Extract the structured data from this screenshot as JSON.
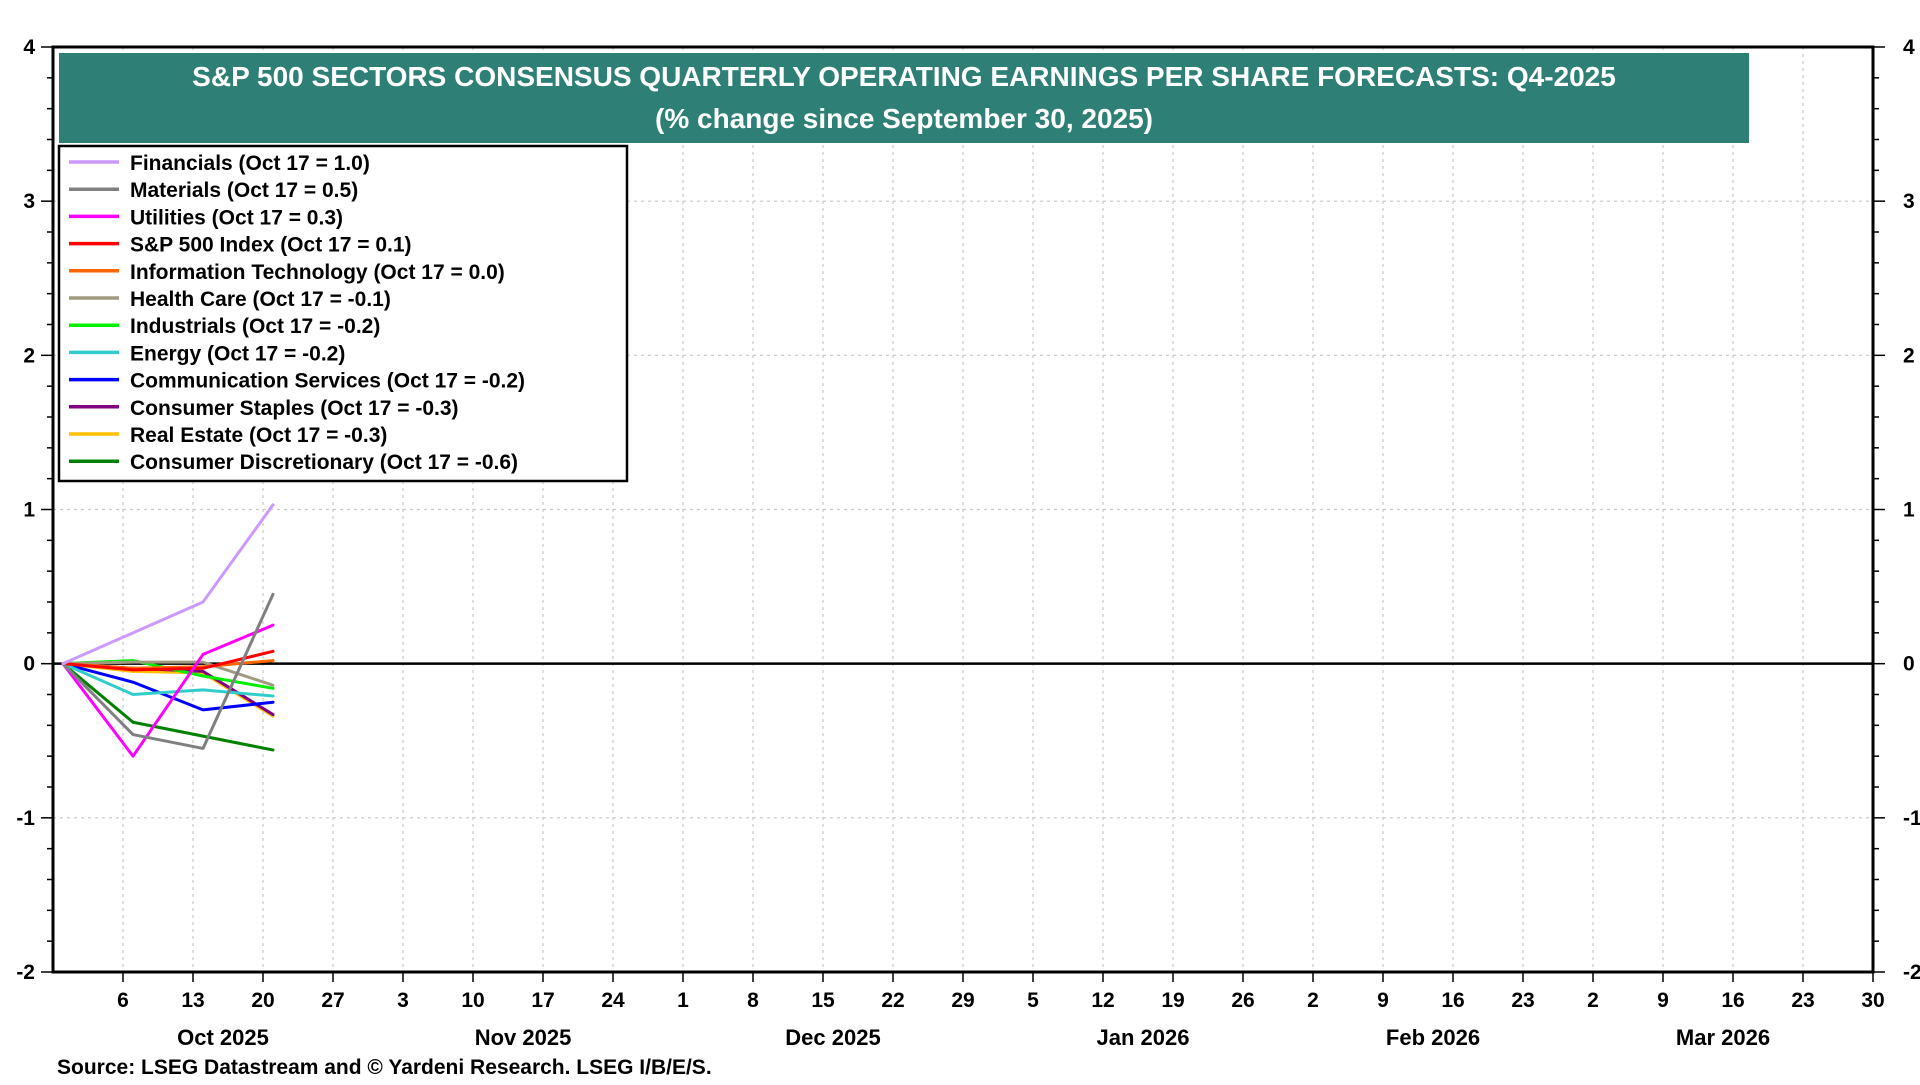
{
  "chart_data": {
    "type": "line",
    "title": "S&P 500 SECTORS CONSENSUS QUARTERLY OPERATING EARNINGS PER SHARE FORECASTS: Q4-2025",
    "subtitle": "(% change since September 30, 2025)",
    "source": "Source: LSEG Datastream and © Yardeni Research. LSEG I/B/E/S.",
    "xlabel": "",
    "ylabel": "",
    "ylim": [
      -2,
      4
    ],
    "yticks": [
      -2,
      -1,
      0,
      1,
      2,
      3,
      4
    ],
    "ytick_labels": [
      "-2",
      "-1",
      "0",
      "1",
      "2",
      "3",
      "4"
    ],
    "xlim_days": [
      -1,
      181
    ],
    "x_days": [
      0,
      7,
      14,
      21
    ],
    "x_dates": [
      "Sep 30",
      "Oct 7",
      "Oct 14",
      "Oct 21"
    ],
    "xticks": [
      {
        "label": "6",
        "day": 6
      },
      {
        "label": "13",
        "day": 13
      },
      {
        "label": "20",
        "day": 20
      },
      {
        "label": "27",
        "day": 27
      },
      {
        "label": "3",
        "day": 34
      },
      {
        "label": "10",
        "day": 41
      },
      {
        "label": "17",
        "day": 48
      },
      {
        "label": "24",
        "day": 55
      },
      {
        "label": "1",
        "day": 62
      },
      {
        "label": "8",
        "day": 69
      },
      {
        "label": "15",
        "day": 76
      },
      {
        "label": "22",
        "day": 83
      },
      {
        "label": "29",
        "day": 90
      },
      {
        "label": "5",
        "day": 97
      },
      {
        "label": "12",
        "day": 104
      },
      {
        "label": "19",
        "day": 111
      },
      {
        "label": "26",
        "day": 118
      },
      {
        "label": "2",
        "day": 125
      },
      {
        "label": "9",
        "day": 132
      },
      {
        "label": "16",
        "day": 139
      },
      {
        "label": "23",
        "day": 146
      },
      {
        "label": "2",
        "day": 153
      },
      {
        "label": "9",
        "day": 160
      },
      {
        "label": "16",
        "day": 167
      },
      {
        "label": "23",
        "day": 174
      },
      {
        "label": "30",
        "day": 181
      }
    ],
    "months": [
      {
        "label": "Oct 2025",
        "day": 16
      },
      {
        "label": "Nov 2025",
        "day": 46
      },
      {
        "label": "Dec 2025",
        "day": 77
      },
      {
        "label": "Jan 2026",
        "day": 108
      },
      {
        "label": "Feb 2026",
        "day": 137
      },
      {
        "label": "Mar 2026",
        "day": 166
      }
    ],
    "legend_position": "top-left",
    "series": [
      {
        "name": "Financials (Oct 17 = 1.0)",
        "color": "#cc99ff",
        "values": [
          0,
          0.2,
          0.4,
          1.03
        ]
      },
      {
        "name": "Materials (Oct 17 = 0.5)",
        "color": "#808080",
        "values": [
          0,
          -0.46,
          -0.55,
          0.45
        ]
      },
      {
        "name": "Utilities (Oct 17 = 0.3)",
        "color": "#ff00ff",
        "values": [
          0,
          -0.6,
          0.06,
          0.25
        ]
      },
      {
        "name": "S&P 500 Index (Oct 17 = 0.1)",
        "color": "#ff0000",
        "values": [
          0,
          -0.04,
          -0.03,
          0.08
        ]
      },
      {
        "name": "Information Technology (Oct 17 = 0.0)",
        "color": "#ff6600",
        "values": [
          0,
          -0.03,
          -0.02,
          0.02
        ]
      },
      {
        "name": "Health Care (Oct 17 = -0.1)",
        "color": "#a09a80",
        "values": [
          0,
          0.01,
          0.01,
          -0.14
        ]
      },
      {
        "name": "Industrials (Oct 17 = -0.2)",
        "color": "#00ee00",
        "values": [
          0,
          0.02,
          -0.08,
          -0.16
        ]
      },
      {
        "name": "Energy (Oct 17 = -0.2)",
        "color": "#33cccc",
        "values": [
          0,
          -0.2,
          -0.17,
          -0.21
        ]
      },
      {
        "name": "Communication Services (Oct 17 = -0.2)",
        "color": "#0000ff",
        "values": [
          0,
          -0.12,
          -0.3,
          -0.25
        ]
      },
      {
        "name": "Consumer Staples (Oct 17 = -0.3)",
        "color": "#800080",
        "values": [
          0,
          -0.03,
          -0.05,
          -0.33
        ]
      },
      {
        "name": "Real Estate (Oct 17 = -0.3)",
        "color": "#ffc000",
        "values": [
          0,
          -0.05,
          -0.06,
          -0.34
        ]
      },
      {
        "name": "Consumer Discretionary (Oct 17 = -0.6)",
        "color": "#008000",
        "values": [
          0,
          -0.38,
          -0.47,
          -0.56
        ]
      }
    ],
    "colors": {
      "title_band": "#2e8077",
      "title_text": "#ffffff",
      "gridline": "#c8c8c8",
      "axis": "#000000"
    }
  }
}
